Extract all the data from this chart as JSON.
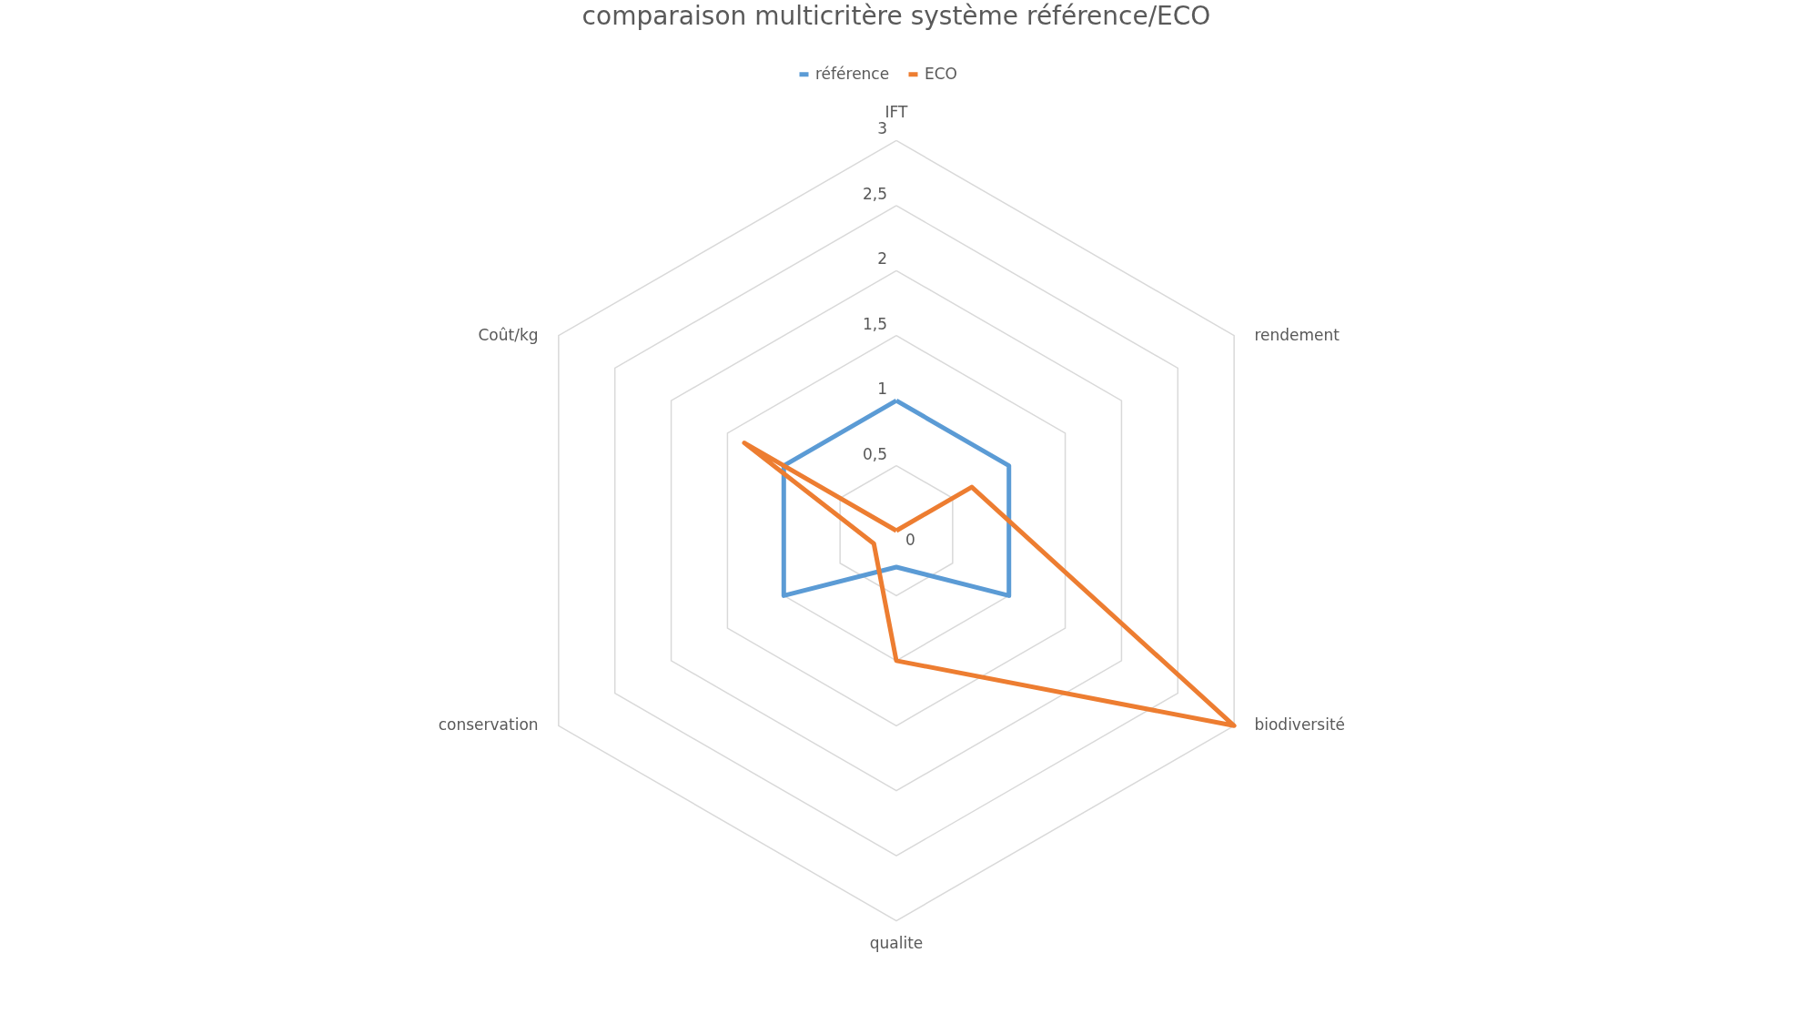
{
  "chart_data": {
    "type": "radar",
    "title": "comparaison multicritère système référence/ECO",
    "categories": [
      "IFT",
      "rendement",
      "biodiversité",
      "qualite",
      "conservation",
      "Coût/kg"
    ],
    "series": [
      {
        "name": "référence",
        "color": "#5b9bd5",
        "values": [
          1,
          1,
          1,
          0.28,
          1,
          1
        ]
      },
      {
        "name": "ECO",
        "color": "#ed7d31",
        "values": [
          0,
          0.67,
          3,
          1,
          0.2,
          1.35
        ]
      }
    ],
    "ylim": [
      0,
      3
    ],
    "yticks": [
      0,
      {
        "value": 0.5,
        "label": "0,5"
      },
      1,
      {
        "value": 1.5,
        "label": "1,5"
      },
      2,
      {
        "value": 2.5,
        "label": "2,5"
      },
      3
    ],
    "grid": true,
    "legend": "top"
  }
}
